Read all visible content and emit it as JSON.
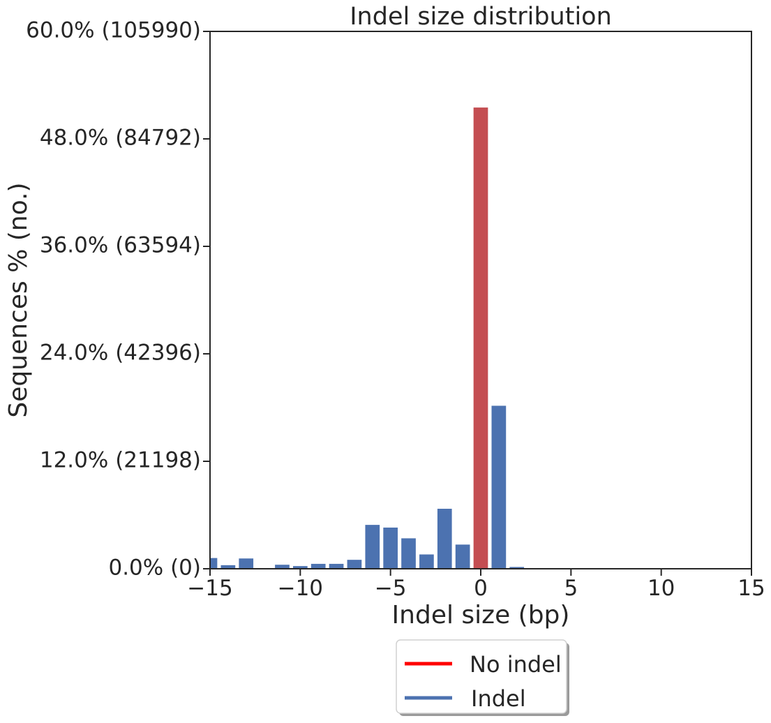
{
  "chart_data": {
    "type": "bar",
    "title": "Indel size distribution",
    "xlabel": "Indel size (bp)",
    "ylabel": "Sequences % (no.)",
    "xlim": [
      -15,
      15
    ],
    "ylim": [
      0,
      60
    ],
    "x_ticks": [
      -15,
      -10,
      -5,
      0,
      5,
      10,
      15
    ],
    "x_tick_labels": [
      "−15",
      "−10",
      "−5",
      "0",
      "5",
      "10",
      "15"
    ],
    "y_ticks": [
      0,
      12,
      24,
      36,
      48,
      60
    ],
    "y_tick_labels": [
      "0.0% (0)",
      "12.0% (21198)",
      "24.0% (42396)",
      "36.0% (63594)",
      "48.0% (84792)",
      "60.0% (105990)"
    ],
    "grid": false,
    "legend_position": "bottom-center, below plot",
    "legend": [
      {
        "label": "No indel",
        "color": "#ff0000"
      },
      {
        "label": "Indel",
        "color": "#4c72b0"
      }
    ],
    "colors": {
      "indel": "#4c72b0",
      "no_indel": "#c44e52",
      "no_indel_legend": "#ff0000"
    },
    "series": [
      {
        "name": "Indel",
        "x": [
          -15,
          -14,
          -13,
          -11,
          -10,
          -9,
          -8,
          -7,
          -6,
          -5,
          -4,
          -3,
          -2,
          -1,
          1,
          2
        ],
        "values": [
          1.2,
          0.4,
          1.15,
          0.45,
          0.3,
          0.55,
          0.55,
          1.0,
          4.9,
          4.6,
          3.4,
          1.6,
          6.7,
          2.7,
          18.2,
          0.2
        ]
      },
      {
        "name": "No indel",
        "x": [
          0
        ],
        "values": [
          51.5
        ]
      }
    ]
  }
}
